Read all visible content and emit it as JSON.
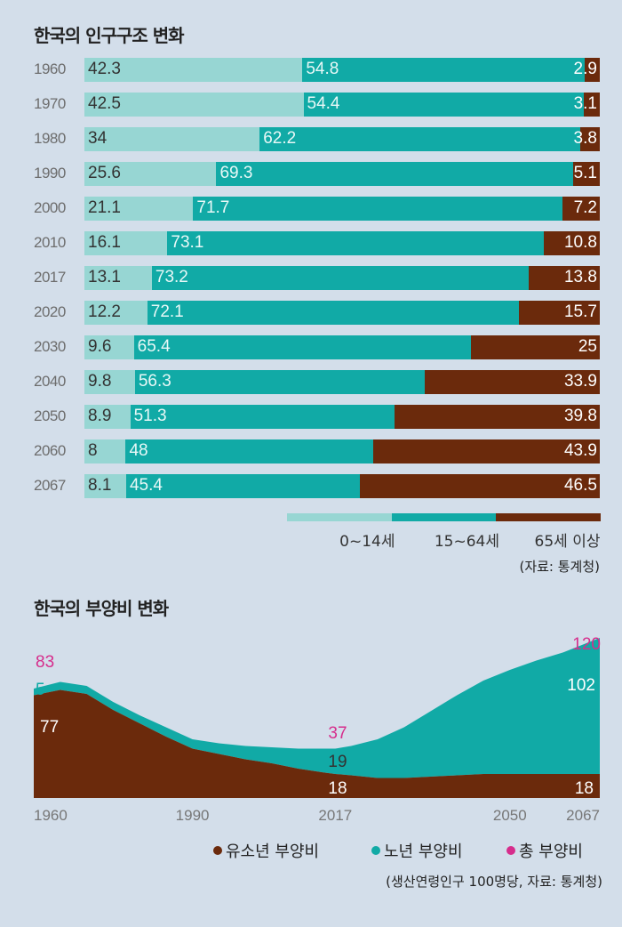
{
  "chart_data": [
    {
      "type": "bar",
      "orientation": "horizontal",
      "stacked": true,
      "normalized_percent": true,
      "title": "한국의 인구구조 변화",
      "categories": [
        "1960",
        "1970",
        "1980",
        "1990",
        "2000",
        "2010",
        "2017",
        "2020",
        "2030",
        "2040",
        "2050",
        "2060",
        "2067"
      ],
      "series": [
        {
          "name": "0~14세",
          "color": "#97d6d3",
          "values": [
            42.3,
            42.5,
            34,
            25.6,
            21.1,
            16.1,
            13.1,
            12.2,
            9.6,
            9.8,
            8.9,
            8,
            8.1
          ]
        },
        {
          "name": "15~64세",
          "color": "#11aaa6",
          "values": [
            54.8,
            54.4,
            62.2,
            69.3,
            71.7,
            73.1,
            73.2,
            72.1,
            65.4,
            56.3,
            51.3,
            48,
            45.4
          ]
        },
        {
          "name": "65세 이상",
          "color": "#6b2a0c",
          "values": [
            2.9,
            3.1,
            3.8,
            5.1,
            7.2,
            10.8,
            13.8,
            15.7,
            25,
            33.9,
            39.8,
            43.9,
            46.5
          ]
        }
      ],
      "legend": "bottom-right",
      "source": "(자료: 통계청)"
    },
    {
      "type": "area",
      "stacked": true,
      "title": "한국의 부양비 변화",
      "x_ticks": [
        "1960",
        "1990",
        "2017",
        "2050",
        "2067"
      ],
      "x": [
        1960,
        1965,
        1970,
        1975,
        1980,
        1985,
        1990,
        1995,
        2000,
        2005,
        2010,
        2015,
        2017,
        2020,
        2025,
        2030,
        2035,
        2040,
        2045,
        2050,
        2055,
        2060,
        2067
      ],
      "series": [
        {
          "name": "유소년 부양비",
          "color": "#6b2a0c",
          "values": [
            77,
            81,
            78,
            66,
            56,
            46,
            37,
            33,
            29,
            26,
            22,
            19,
            18,
            17,
            15,
            15,
            16,
            17,
            18,
            18,
            18,
            18,
            18
          ]
        },
        {
          "name": "노년 부양비",
          "color": "#11aaa6",
          "values": [
            5,
            6,
            6,
            6,
            6,
            7,
            7,
            8,
            10,
            12,
            15,
            18,
            19,
            22,
            29,
            38,
            49,
            60,
            70,
            78,
            85,
            91,
            102
          ]
        },
        {
          "name": "총 부양비",
          "color": "#d62d8c"
        }
      ],
      "annotations": [
        {
          "x": 1960,
          "label": "83",
          "color": "#d62d8c"
        },
        {
          "x": 1960,
          "label": "5",
          "color": "#11aaa6"
        },
        {
          "x": 1960,
          "label": "77",
          "color": "#ffffff"
        },
        {
          "x": 2017,
          "label": "37",
          "color": "#d62d8c"
        },
        {
          "x": 2017,
          "label": "19",
          "color": "#333333"
        },
        {
          "x": 2017,
          "label": "18",
          "color": "#ffffff"
        },
        {
          "x": 2067,
          "label": "120",
          "color": "#d62d8c"
        },
        {
          "x": 2067,
          "label": "102",
          "color": "#ffffff"
        },
        {
          "x": 2067,
          "label": "18",
          "color": "#ffffff"
        }
      ],
      "legend": "bottom-right",
      "note": "(생산연령인구 100명당, 자료: 통계청)"
    }
  ]
}
